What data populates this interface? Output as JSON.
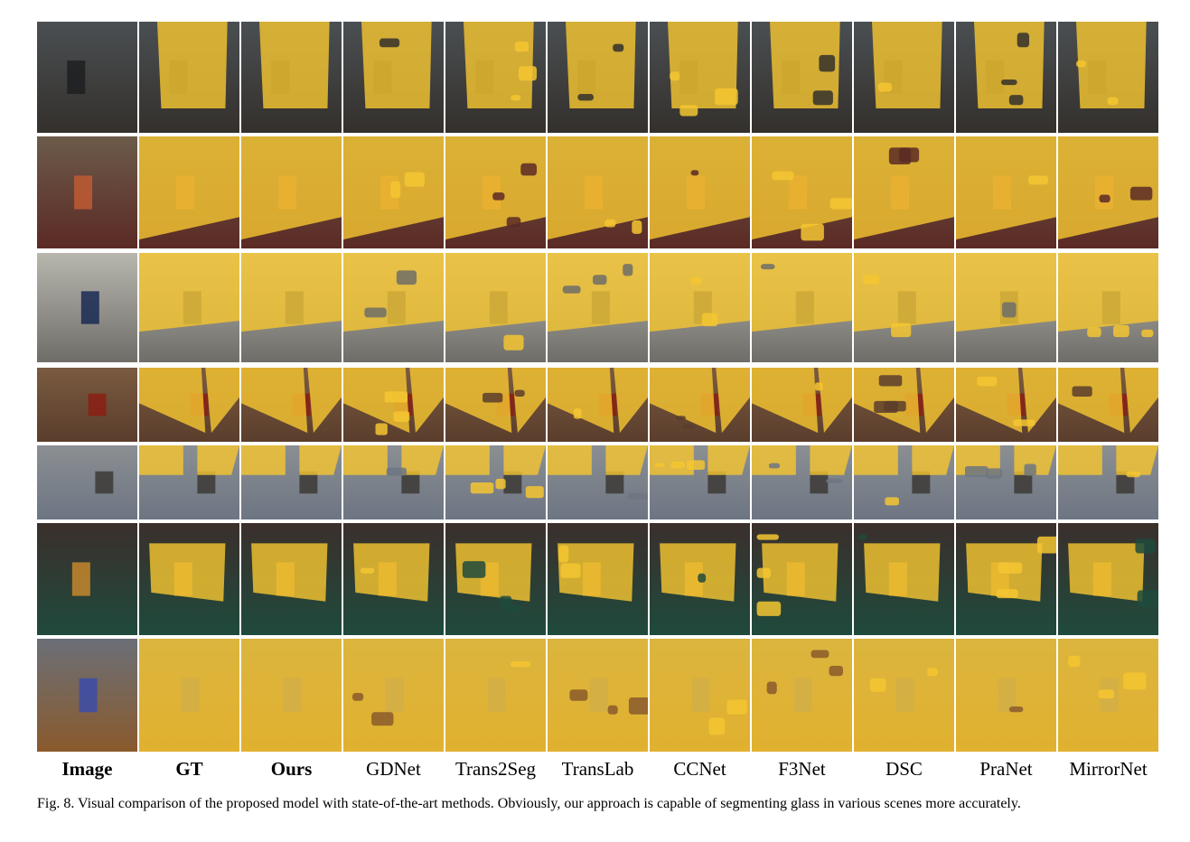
{
  "figure": {
    "columns": [
      {
        "label": "Image",
        "bold": true
      },
      {
        "label": "GT",
        "bold": true
      },
      {
        "label": "Ours",
        "bold": true
      },
      {
        "label": "GDNet",
        "bold": false
      },
      {
        "label": "Trans2Seg",
        "bold": false
      },
      {
        "label": "TransLab",
        "bold": false
      },
      {
        "label": "CCNet",
        "bold": false
      },
      {
        "label": "F3Net",
        "bold": false
      },
      {
        "label": "DSC",
        "bold": false
      },
      {
        "label": "PraNet",
        "bold": false
      },
      {
        "label": "MirrorNet",
        "bold": false
      }
    ],
    "caption": "Fig. 8.  Visual comparison of the proposed model with state-of-the-art methods. Obviously, our approach is capable of segmenting glass in various scenes more accurately.",
    "rows": [
      {
        "scene": "glass-door-corridor",
        "palette": {
          "top": "#4a4f52",
          "bottom": "#34302c",
          "accent": "#1d1f20"
        }
      },
      {
        "scene": "shop-window-vase",
        "palette": {
          "top": "#6c5b4a",
          "bottom": "#5b2a24",
          "accent": "#c05a33"
        }
      },
      {
        "scene": "mall-storefront",
        "palette": {
          "top": "#b8b7ae",
          "bottom": "#6f6d68",
          "accent": "#1a2a55"
        }
      },
      {
        "scene": "jewelry-showcase",
        "palette": {
          "top": "#7a5b40",
          "bottom": "#5a3d2c",
          "accent": "#8b1e14"
        }
      },
      {
        "scene": "glass-wall-tiles",
        "palette": {
          "top": "#8b8f92",
          "bottom": "#6d7583",
          "accent": "#3c3a36"
        }
      },
      {
        "scene": "bakery-counter",
        "palette": {
          "top": "#3b2f2c",
          "bottom": "#1f4a3c",
          "accent": "#c4872d"
        }
      },
      {
        "scene": "entrance-doors",
        "palette": {
          "top": "#6b6f78",
          "bottom": "#8a5a2c",
          "accent": "#3b4ca8"
        }
      }
    ],
    "overlay_color": "#f4c531"
  }
}
